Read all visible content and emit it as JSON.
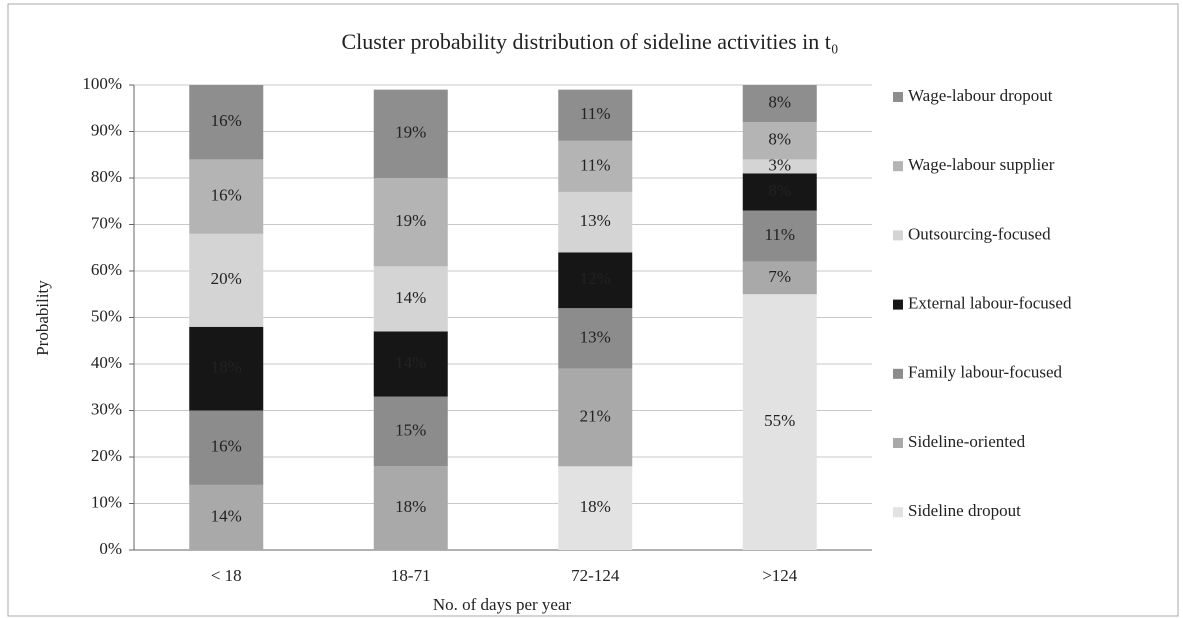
{
  "chart_data": {
    "type": "stacked_bar",
    "title": "Cluster probability distribution of sideline activities in t₀",
    "x_label": "No. of days per year",
    "y_label": "Probability",
    "categories": [
      "< 18",
      "18-71",
      "72-124",
      ">124"
    ],
    "ylim": [
      0,
      100
    ],
    "yticks": [
      {
        "value": 0,
        "label": "0%"
      },
      {
        "value": 10,
        "label": "10%"
      },
      {
        "value": 20,
        "label": "20%"
      },
      {
        "value": 30,
        "label": "30%"
      },
      {
        "value": 40,
        "label": "40%"
      },
      {
        "value": 50,
        "label": "50%"
      },
      {
        "value": 60,
        "label": "60%"
      },
      {
        "value": 70,
        "label": "70%"
      },
      {
        "value": 80,
        "label": "80%"
      },
      {
        "value": 90,
        "label": "90%"
      },
      {
        "value": 100,
        "label": "100%"
      }
    ],
    "grid": true,
    "legend": "right",
    "series": [
      {
        "name": "Sideline dropout",
        "color": "#e2e2e2",
        "values": [
          0,
          0,
          18,
          55
        ],
        "value_labels": [
          null,
          null,
          "18%",
          "55%"
        ]
      },
      {
        "name": "Sideline-oriented",
        "color": "#a9a9a9",
        "values": [
          14,
          18,
          21,
          7
        ],
        "value_labels": [
          "14%",
          "18%",
          "21%",
          "7%"
        ]
      },
      {
        "name": "Family labour-focused",
        "color": "#8c8c8c",
        "values": [
          16,
          15,
          13,
          11
        ],
        "value_labels": [
          "16%",
          "15%",
          "13%",
          "11%"
        ]
      },
      {
        "name": "External labour-focused",
        "color": "#161616",
        "values": [
          18,
          14,
          12,
          8
        ],
        "value_labels": [
          "18%",
          "14%",
          "12%",
          "8%"
        ]
      },
      {
        "name": "Outsourcing-focused",
        "color": "#d4d4d4",
        "values": [
          20,
          14,
          13,
          3
        ],
        "value_labels": [
          "20%",
          "14%",
          "13%",
          "3%"
        ]
      },
      {
        "name": "Wage-labour supplier",
        "color": "#b4b4b4",
        "values": [
          16,
          19,
          11,
          8
        ],
        "value_labels": [
          "16%",
          "19%",
          "11%",
          "8%"
        ]
      },
      {
        "name": "Wage-labour dropout",
        "color": "#8e8e8e",
        "values": [
          16,
          19,
          11,
          8
        ],
        "value_labels": [
          "16%",
          "19%",
          "11%",
          "8%"
        ]
      }
    ]
  }
}
